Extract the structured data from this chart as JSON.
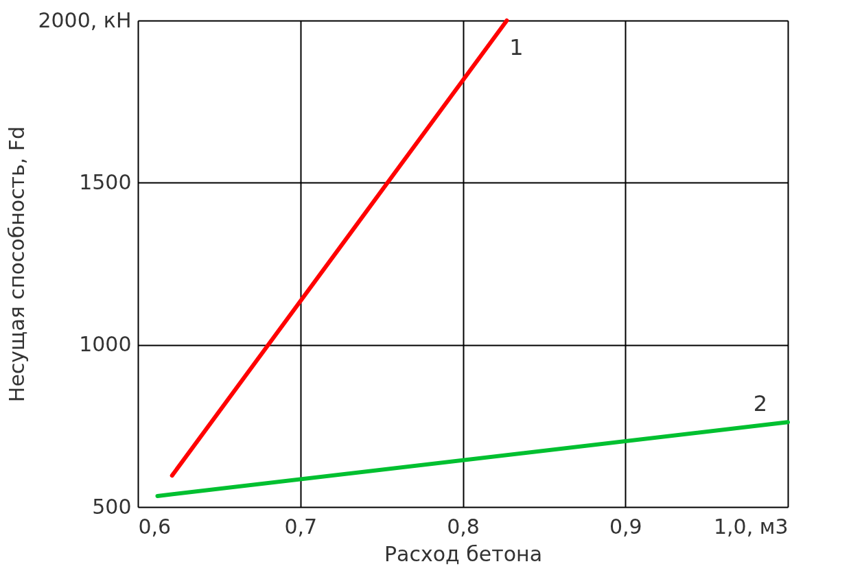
{
  "chart_data": {
    "type": "line",
    "xlabel": "Расход бетона",
    "ylabel": "Несущая способность, Fd",
    "xlim": [
      0.6,
      1.0
    ],
    "ylim": [
      500,
      2000
    ],
    "xticks": [
      {
        "value": 0.6,
        "label": "0,6"
      },
      {
        "value": 0.7,
        "label": "0,7"
      },
      {
        "value": 0.8,
        "label": "0,8"
      },
      {
        "value": 0.9,
        "label": "0,9"
      },
      {
        "value": 1.0,
        "label": "1,0, м3"
      }
    ],
    "yticks": [
      500,
      1000,
      1500,
      {
        "value": 2000,
        "label": "2000, кН"
      }
    ],
    "grid": true,
    "legend": false,
    "marker": "none",
    "line_style": "solid",
    "series": [
      {
        "name": "1",
        "color": "#ff0000",
        "x": [
          0.621,
          0.827
        ],
        "values": [
          597,
          2000
        ]
      },
      {
        "name": "2",
        "color": "#00c030",
        "x": [
          0.612,
          1.0
        ],
        "values": [
          534,
          762
        ]
      }
    ]
  }
}
